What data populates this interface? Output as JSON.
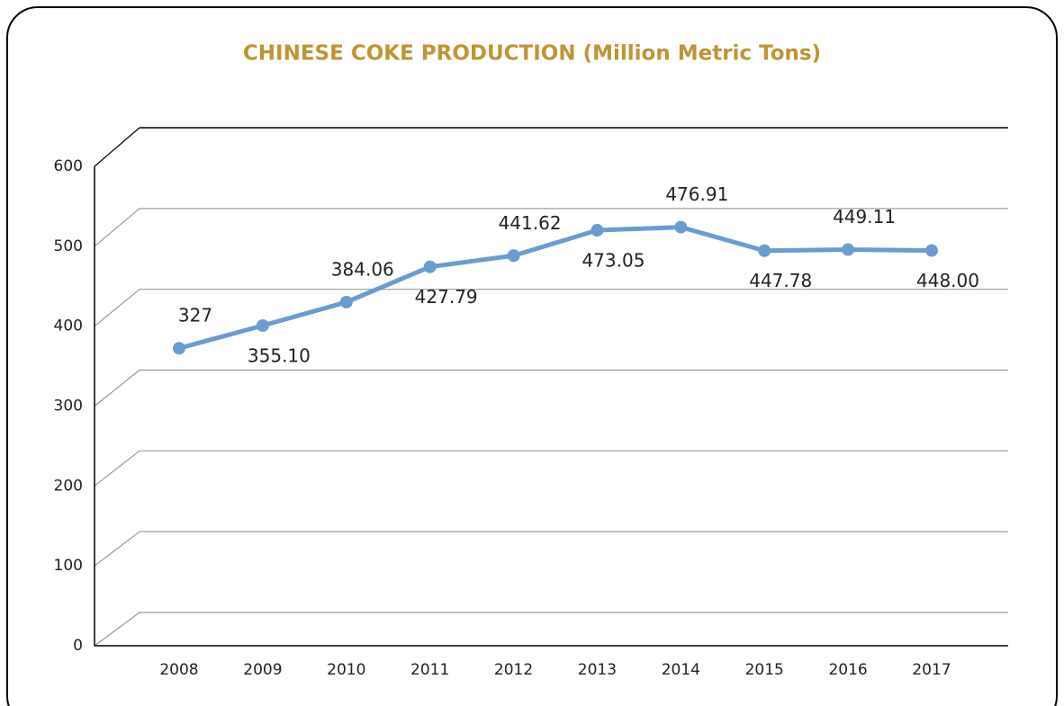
{
  "chart_data": {
    "type": "line",
    "title": "CHINESE COKE PRODUCTION (Million Metric Tons)",
    "categories": [
      "2008",
      "2009",
      "2010",
      "2011",
      "2012",
      "2013",
      "2014",
      "2015",
      "2016",
      "2017"
    ],
    "series": [
      {
        "name": "Coke Production",
        "color": "#6a9bd1",
        "values": [
          327,
          355.1,
          384.06,
          427.79,
          441.62,
          473.05,
          476.91,
          447.78,
          449.11,
          448.0
        ],
        "value_labels": [
          "327",
          "355.10",
          "384.06",
          "427.79",
          "441.62",
          "473.05",
          "476.91",
          "447.78",
          "449.11",
          "448.00"
        ]
      }
    ],
    "ylim": [
      0,
      600
    ],
    "yticks": [
      0,
      100,
      200,
      300,
      400,
      500,
      600
    ],
    "grid": true,
    "title_color": "#c09434"
  }
}
